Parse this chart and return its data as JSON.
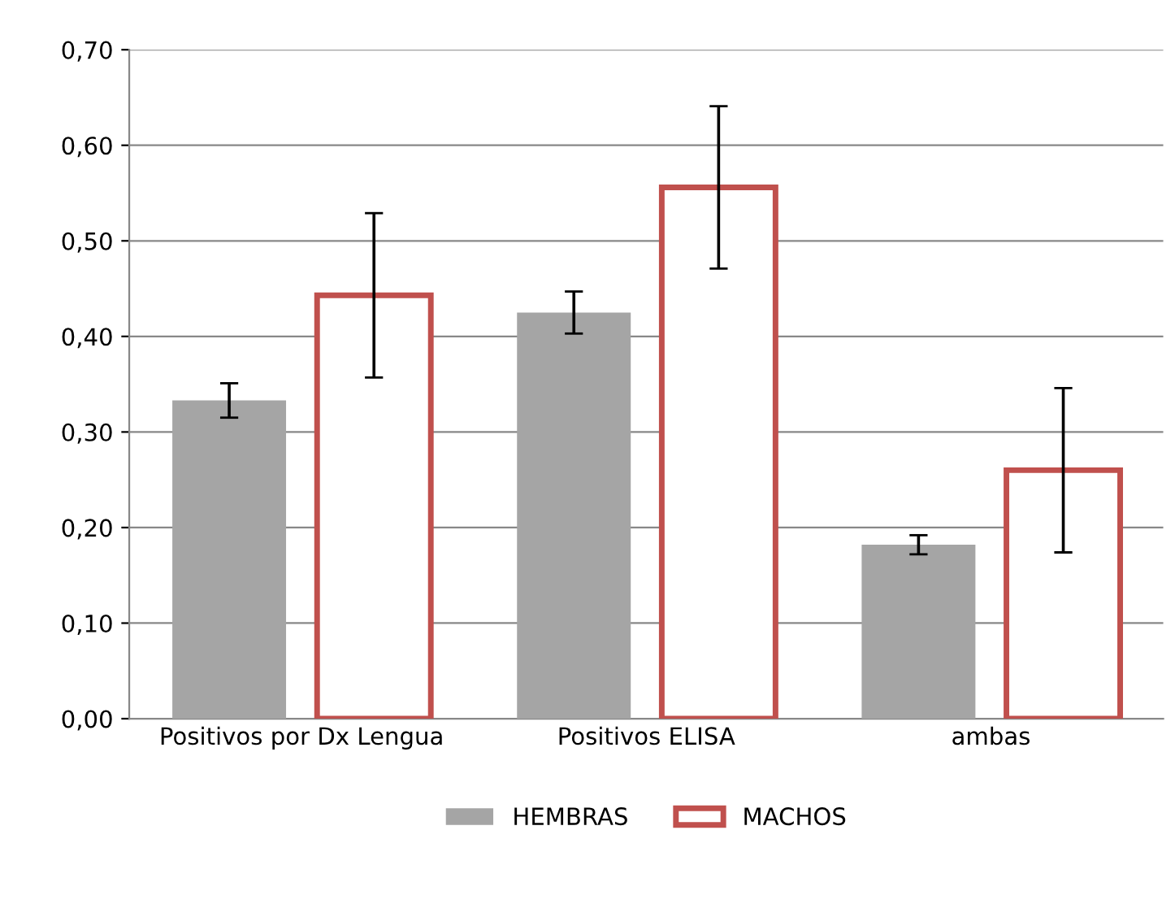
{
  "chart_data": {
    "type": "bar",
    "categories": [
      "Positivos por Dx Lengua",
      "Positivos ELISA",
      "ambas"
    ],
    "series": [
      {
        "name": "HEMBRAS",
        "color": "#a5a5a5",
        "values": [
          0.333,
          0.425,
          0.182
        ],
        "errors": [
          0.018,
          0.022,
          0.01
        ]
      },
      {
        "name": "MACHOS",
        "color": "#c0504d",
        "values": [
          0.443,
          0.556,
          0.26
        ],
        "errors": [
          0.086,
          0.085,
          0.086
        ]
      }
    ],
    "ylim": [
      0,
      0.7
    ],
    "yticks": [
      {
        "value": 0,
        "label": "0,00"
      },
      {
        "value": 0.1,
        "label": "0,10"
      },
      {
        "value": 0.2,
        "label": "0,20"
      },
      {
        "value": 0.3,
        "label": "0,30"
      },
      {
        "value": 0.4,
        "label": "0,40"
      },
      {
        "value": 0.5,
        "label": "0,50"
      },
      {
        "value": 0.6,
        "label": "0,60"
      },
      {
        "value": 0.7,
        "label": "0,70"
      }
    ],
    "grid": "y",
    "legend": "bottom"
  }
}
